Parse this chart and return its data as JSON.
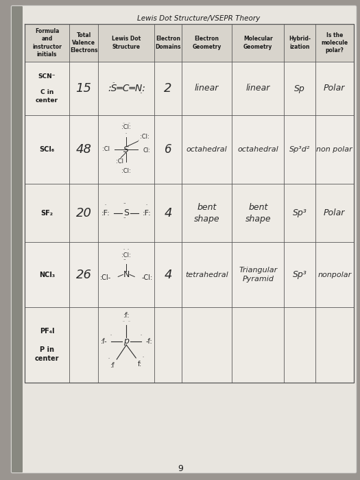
{
  "title": "Lewis Dot Structure/VSEPR Theory",
  "page_number": "9",
  "header_cols": [
    "Formula\nand\ninstructor\ninitials",
    "Total\nValence\nElectrons",
    "Lewis Dot\nStructure",
    "Electron\nDomains",
    "Electron\nGeometry",
    "Molecular\nGeometry",
    "Hybrid-\nization",
    "Is the\nmolecule\npolar?"
  ],
  "rows": [
    {
      "formula": "SCN⁻\n\nC in\ncenter",
      "valence": "15",
      "domains": "2",
      "e_geom": "linear",
      "m_geom": "linear",
      "hybrid": "Sp",
      "polar": "Polar"
    },
    {
      "formula": "SCl₆",
      "valence": "48",
      "domains": "6",
      "e_geom": "octahedral",
      "m_geom": "octahedral",
      "hybrid": "Sp³d²",
      "polar": "non polar"
    },
    {
      "formula": "SF₂",
      "valence": "20",
      "domains": "4",
      "e_geom": "bent\nshape",
      "m_geom": "bent\nshape",
      "hybrid": "Sp³",
      "polar": "Polar"
    },
    {
      "formula": "NCl₃",
      "valence": "26",
      "domains": "4",
      "e_geom": "tetrahedral",
      "m_geom": "Triangular\nPyramid",
      "hybrid": "Sp³",
      "polar": "nonpolar"
    },
    {
      "formula": "PF₄I\n\nP in\ncenter",
      "valence": "",
      "domains": "",
      "e_geom": "",
      "m_geom": "",
      "hybrid": "",
      "polar": ""
    }
  ],
  "outer_bg": "#9a9590",
  "page_bg": "#e8e5df",
  "cell_bg": "#f0ede8",
  "line_color": "#555555",
  "text_color": "#1a1a1a",
  "header_bg": "#d8d4cc",
  "handwrite_color": "#2a2a2a",
  "faint_color": "#b0aaaa"
}
